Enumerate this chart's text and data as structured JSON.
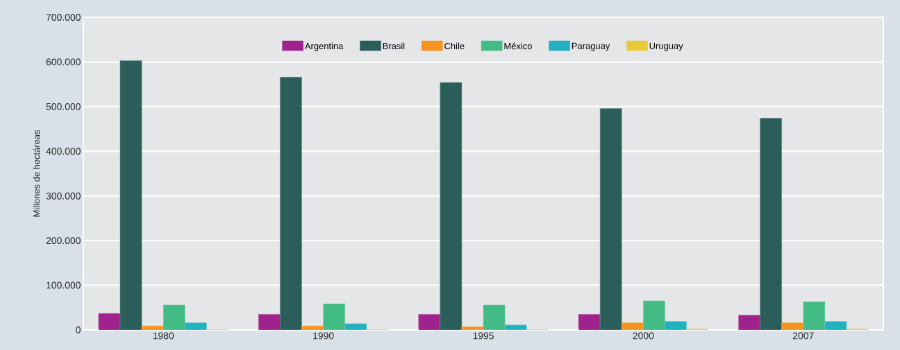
{
  "chart_data": {
    "type": "bar",
    "ylabel": "Millones de hectáreas",
    "categories": [
      "1980",
      "1990",
      "1995",
      "2000",
      "2007"
    ],
    "series": [
      {
        "name": "Argentina",
        "color": "#a0228c",
        "values": [
          37000,
          35000,
          35000,
          35000,
          33000
        ]
      },
      {
        "name": "Brasil",
        "color": "#2b5d5b",
        "values": [
          603000,
          566000,
          554000,
          496000,
          474000
        ]
      },
      {
        "name": "Chile",
        "color": "#f7941d",
        "values": [
          9000,
          9000,
          7000,
          16000,
          16000
        ]
      },
      {
        "name": "México",
        "color": "#43bb84",
        "values": [
          56000,
          58000,
          56000,
          65000,
          63000
        ]
      },
      {
        "name": "Paraguay",
        "color": "#22b1bf",
        "values": [
          16000,
          14000,
          11000,
          19000,
          19000
        ]
      },
      {
        "name": "Uruguay",
        "color": "#e8c93a",
        "values": [
          1000,
          1000,
          1000,
          2000,
          2000
        ]
      }
    ],
    "ylim": [
      0,
      700000
    ],
    "yticks": [
      {
        "value": 0,
        "label": "0"
      },
      {
        "value": 100000,
        "label": "100.000"
      },
      {
        "value": 200000,
        "label": "200.000"
      },
      {
        "value": 300000,
        "label": "300.000"
      },
      {
        "value": 400000,
        "label": "400.000"
      },
      {
        "value": 500000,
        "label": "500.000"
      },
      {
        "value": 600000,
        "label": "600.000"
      },
      {
        "value": 700000,
        "label": "700.000"
      }
    ],
    "grid": "y",
    "legend": "top"
  }
}
